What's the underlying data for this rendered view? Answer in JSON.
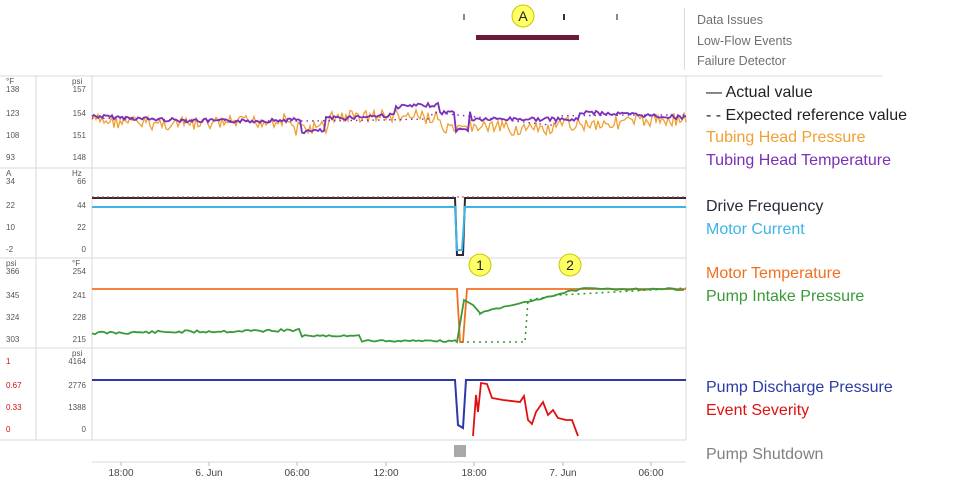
{
  "top_links": [
    "Data Issues",
    "Low-Flow Events",
    "Failure Detector"
  ],
  "marker_a": "A",
  "marker_1": "1",
  "marker_2": "2",
  "colors": {
    "actual": "#333333",
    "tubing_pressure": "#f0a030",
    "tubing_temp": "#7a2fb8",
    "drive_freq": "#2b2b3a",
    "motor_current": "#3cb4e6",
    "motor_temp": "#f07020",
    "intake_pressure": "#3a9a3a",
    "discharge": "#2c3aa8",
    "severity": "#e01010",
    "shutdown": "#808080",
    "event_bar": "#6b1a3a",
    "marker_fill": "#ffff66"
  },
  "chart_data": {
    "type": "line",
    "x_ticks": [
      "18:00",
      "6. Jun",
      "06:00",
      "12:00",
      "18:00",
      "7. Jun",
      "06:00"
    ],
    "panels": [
      {
        "id": "p1",
        "left_unit": "°F",
        "left_ticks": [
          "138",
          "123",
          "108",
          "93"
        ],
        "right_unit": "psi",
        "right_ticks": [
          "157",
          "154",
          "151",
          "148"
        ],
        "series": [
          "Tubing Head Pressure",
          "Tubing Head Temperature"
        ]
      },
      {
        "id": "p2",
        "left_unit": "A",
        "left_ticks": [
          "34",
          "22",
          "10",
          "-2"
        ],
        "right_unit": "Hz",
        "right_ticks": [
          "66",
          "44",
          "22",
          "0"
        ],
        "series": [
          "Drive Frequency",
          "Motor Current"
        ]
      },
      {
        "id": "p3",
        "left_unit": "psi",
        "left_ticks": [
          "366",
          "345",
          "324",
          "303"
        ],
        "right_unit": "°F",
        "right_ticks": [
          "254",
          "241",
          "228",
          "215"
        ],
        "series": [
          "Motor Temperature",
          "Pump Intake Pressure"
        ]
      },
      {
        "id": "p4",
        "left_unit": "",
        "left_ticks": [
          "1",
          "0.67",
          "0.33",
          "0"
        ],
        "right_unit": "psi",
        "right_ticks": [
          "4164",
          "2776",
          "1388",
          "0"
        ],
        "series": [
          "Pump Discharge Pressure",
          "Event Severity"
        ]
      }
    ],
    "legend": [
      {
        "label": "— Actual value",
        "key": "actual"
      },
      {
        "label": "- -  Expected reference value",
        "key": "actual"
      },
      {
        "label": "Tubing Head Pressure",
        "key": "tubing_pressure"
      },
      {
        "label": "Tubing Head Temperature",
        "key": "tubing_temp"
      },
      {
        "label": "Drive Frequency",
        "key": "drive_freq"
      },
      {
        "label": "Motor Current",
        "key": "motor_current"
      },
      {
        "label": "Motor Temperature",
        "key": "motor_temp"
      },
      {
        "label": "Pump Intake Pressure",
        "key": "intake_pressure"
      },
      {
        "label": "Pump Discharge Pressure",
        "key": "discharge"
      },
      {
        "label": "Event Severity",
        "key": "severity"
      },
      {
        "label": "Pump Shutdown",
        "key": "shutdown"
      }
    ],
    "series_data": {
      "drive_frequency_hz": 48,
      "motor_current_a": 22,
      "motor_temp_f": 245,
      "discharge_psi": 3800,
      "severity": [
        [
          0.0,
          0
        ],
        [
          0.01,
          0.95
        ],
        [
          0.03,
          0.95
        ],
        [
          0.05,
          0.6
        ],
        [
          0.1,
          0.55
        ],
        [
          0.14,
          0.55
        ],
        [
          0.2,
          0.5
        ],
        [
          0.23,
          0.45
        ],
        [
          0.27,
          0.3
        ],
        [
          0.3,
          0.3
        ],
        [
          0.35,
          0.0
        ]
      ]
    }
  }
}
